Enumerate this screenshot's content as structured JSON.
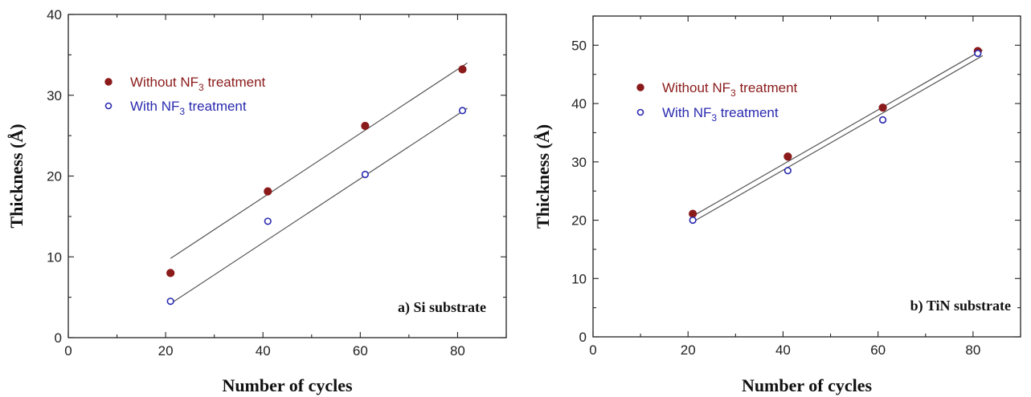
{
  "chart_data": [
    {
      "type": "scatter",
      "xlabel": "Number of cycles",
      "ylabel": "Thickness (Å)",
      "xlim": [
        0,
        90
      ],
      "ylim": [
        0,
        40
      ],
      "xticks": [
        0,
        20,
        40,
        60,
        80
      ],
      "yticks": [
        0,
        10,
        20,
        30,
        40
      ],
      "annotation": "a) Si substrate",
      "legend_position": "top-left",
      "series": [
        {
          "name_main": "Without NF",
          "name_sub": "3",
          "name_tail": " treatment",
          "marker": "filled",
          "color": "#8b1a1a",
          "x": [
            21,
            41,
            61,
            81
          ],
          "y": [
            8.0,
            18.1,
            26.2,
            33.2
          ],
          "fit": {
            "x": [
              21,
              82
            ],
            "y": [
              9.8,
              34.0
            ]
          }
        },
        {
          "name_main": "With NF",
          "name_sub": "3",
          "name_tail": " treatment",
          "marker": "open",
          "color": "#2a2ab0",
          "x": [
            21,
            41,
            61,
            81
          ],
          "y": [
            4.5,
            14.4,
            20.2,
            28.1
          ],
          "fit": {
            "x": [
              21,
              82
            ],
            "y": [
              4.2,
              28.4
            ]
          }
        }
      ]
    },
    {
      "type": "scatter",
      "xlabel": "Number of cycles",
      "ylabel": "Thickness (Å)",
      "xlim": [
        0,
        90
      ],
      "ylim": [
        0,
        55
      ],
      "xticks": [
        0,
        20,
        40,
        60,
        80
      ],
      "yticks": [
        0,
        10,
        20,
        30,
        40,
        50
      ],
      "annotation": "b) TiN substrate",
      "legend_position": "top-left",
      "series": [
        {
          "name_main": "Without NF",
          "name_sub": "3",
          "name_tail": " treatment",
          "marker": "filled",
          "color": "#8b1a1a",
          "x": [
            21,
            41,
            61,
            81
          ],
          "y": [
            21.1,
            30.9,
            39.3,
            49.0
          ],
          "fit": {
            "x": [
              21,
              82
            ],
            "y": [
              20.7,
              49.2
            ]
          }
        },
        {
          "name_main": "With NF",
          "name_sub": "3",
          "name_tail": " treatment",
          "marker": "open",
          "color": "#2a2ab0",
          "x": [
            21,
            41,
            61,
            81
          ],
          "y": [
            20.0,
            28.5,
            37.2,
            48.6
          ],
          "fit": {
            "x": [
              21,
              82
            ],
            "y": [
              19.7,
              48.2
            ]
          }
        }
      ]
    }
  ]
}
